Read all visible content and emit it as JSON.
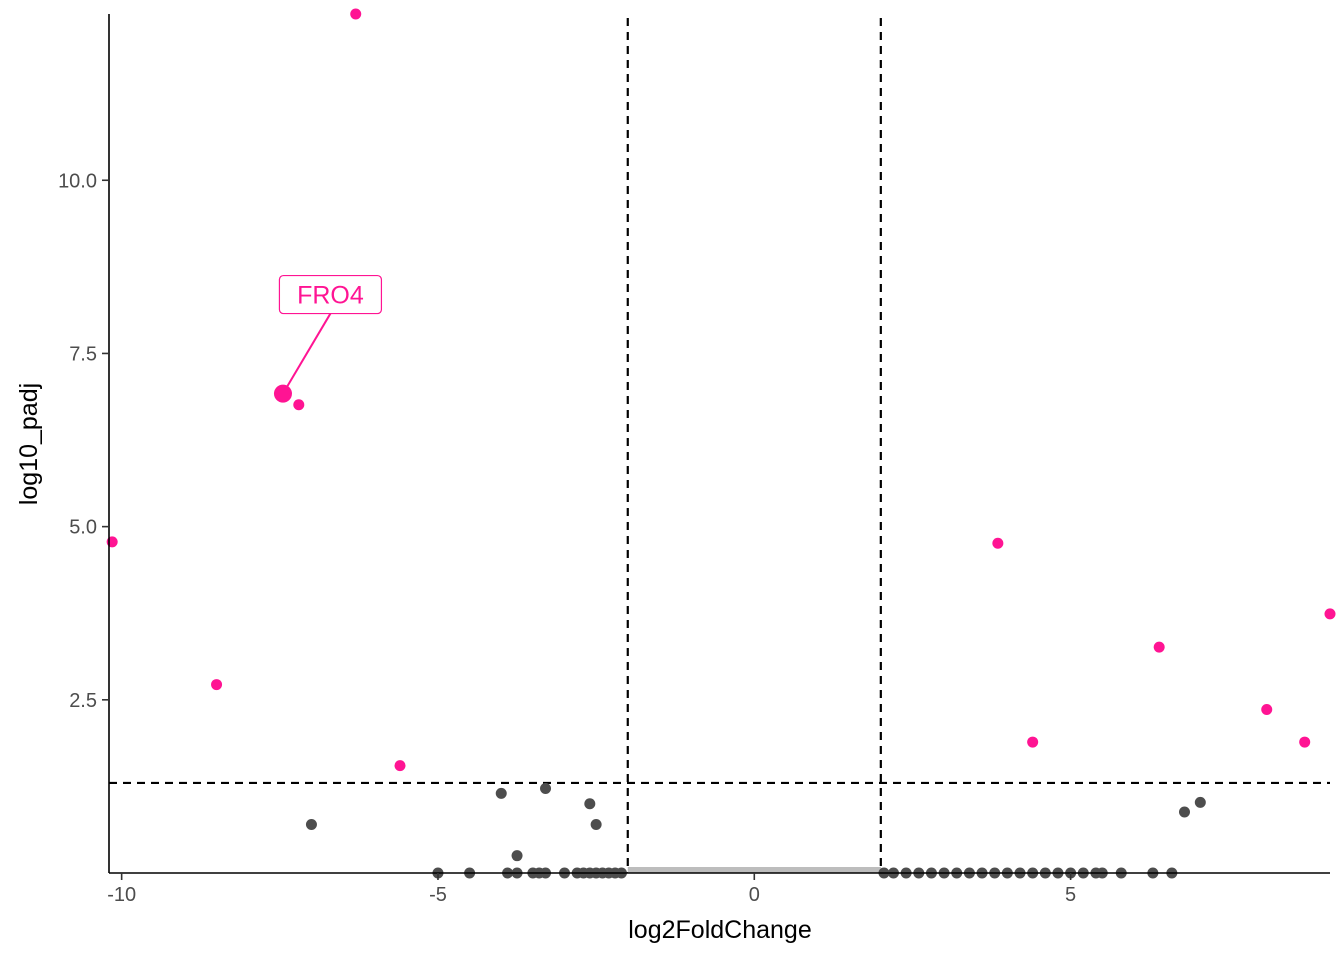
{
  "chart_data": {
    "type": "scatter",
    "title": "",
    "xlabel": "log2FoldChange",
    "ylabel": "log10_padj",
    "xlim": [
      -10.2,
      9.1
    ],
    "ylim": [
      0,
      12.4
    ],
    "x_ticks": [
      {
        "value": -10,
        "label": "-10"
      },
      {
        "value": -5,
        "label": "-5"
      },
      {
        "value": 0,
        "label": "0"
      },
      {
        "value": 5,
        "label": "5"
      }
    ],
    "y_ticks": [
      {
        "value": 2.5,
        "label": "2.5"
      },
      {
        "value": 5.0,
        "label": "5.0"
      },
      {
        "value": 7.5,
        "label": "7.5"
      },
      {
        "value": 10.0,
        "label": "10.0"
      }
    ],
    "thresholds": {
      "x": [
        -2,
        2
      ],
      "y": 1.3
    },
    "grid": false,
    "legend": "none",
    "colors": {
      "significant": "#ff1493",
      "not_significant": "#4d4d4d",
      "dense_band": "#bdbdbd"
    },
    "series": [
      {
        "group": "significant",
        "points": [
          {
            "x": -6.3,
            "y": 12.4
          },
          {
            "x": -7.2,
            "y": 6.76
          },
          {
            "x": -10.15,
            "y": 4.78
          },
          {
            "x": -8.5,
            "y": 2.72
          },
          {
            "x": -5.6,
            "y": 1.55
          },
          {
            "x": 3.85,
            "y": 4.76
          },
          {
            "x": 9.1,
            "y": 3.74
          },
          {
            "x": 6.4,
            "y": 3.26
          },
          {
            "x": 4.4,
            "y": 1.89
          },
          {
            "x": 8.1,
            "y": 2.36
          },
          {
            "x": 8.7,
            "y": 1.89
          }
        ]
      },
      {
        "group": "not_significant",
        "points": [
          {
            "x": -7.0,
            "y": 0.7
          },
          {
            "x": -4.0,
            "y": 1.15
          },
          {
            "x": -3.3,
            "y": 1.22
          },
          {
            "x": -2.6,
            "y": 1.0
          },
          {
            "x": -2.5,
            "y": 0.7
          },
          {
            "x": -3.75,
            "y": 0.25
          },
          {
            "x": 6.8,
            "y": 0.88
          },
          {
            "x": 7.05,
            "y": 1.02
          },
          {
            "x": -5.0,
            "y": 0.0
          },
          {
            "x": -4.5,
            "y": 0.0
          },
          {
            "x": -3.9,
            "y": 0.0
          },
          {
            "x": -3.75,
            "y": 0.0
          },
          {
            "x": -3.5,
            "y": 0.0
          },
          {
            "x": -3.4,
            "y": 0.0
          },
          {
            "x": -3.3,
            "y": 0.0
          },
          {
            "x": -3.0,
            "y": 0.0
          },
          {
            "x": -2.8,
            "y": 0.0
          },
          {
            "x": -2.7,
            "y": 0.0
          },
          {
            "x": -2.6,
            "y": 0.0
          },
          {
            "x": -2.5,
            "y": 0.0
          },
          {
            "x": -2.4,
            "y": 0.0
          },
          {
            "x": -2.3,
            "y": 0.0
          },
          {
            "x": -2.2,
            "y": 0.0
          },
          {
            "x": -2.1,
            "y": 0.0
          },
          {
            "x": 2.05,
            "y": 0.0
          },
          {
            "x": 2.2,
            "y": 0.0
          },
          {
            "x": 2.4,
            "y": 0.0
          },
          {
            "x": 2.6,
            "y": 0.0
          },
          {
            "x": 2.8,
            "y": 0.0
          },
          {
            "x": 3.0,
            "y": 0.0
          },
          {
            "x": 3.2,
            "y": 0.0
          },
          {
            "x": 3.4,
            "y": 0.0
          },
          {
            "x": 3.6,
            "y": 0.0
          },
          {
            "x": 3.8,
            "y": 0.0
          },
          {
            "x": 4.0,
            "y": 0.0
          },
          {
            "x": 4.2,
            "y": 0.0
          },
          {
            "x": 4.4,
            "y": 0.0
          },
          {
            "x": 4.6,
            "y": 0.0
          },
          {
            "x": 4.8,
            "y": 0.0
          },
          {
            "x": 5.0,
            "y": 0.0
          },
          {
            "x": 5.2,
            "y": 0.0
          },
          {
            "x": 5.4,
            "y": 0.0
          },
          {
            "x": 5.5,
            "y": 0.0
          },
          {
            "x": 5.8,
            "y": 0.0
          },
          {
            "x": 6.3,
            "y": 0.0
          },
          {
            "x": 6.6,
            "y": 0.0
          }
        ]
      }
    ],
    "dense_band": {
      "x": [
        -2,
        2
      ],
      "y": 0.0
    },
    "annotation": {
      "label": "FRO4",
      "x": -7.45,
      "y": 6.92,
      "label_x": -6.7,
      "label_y": 8.35
    }
  }
}
